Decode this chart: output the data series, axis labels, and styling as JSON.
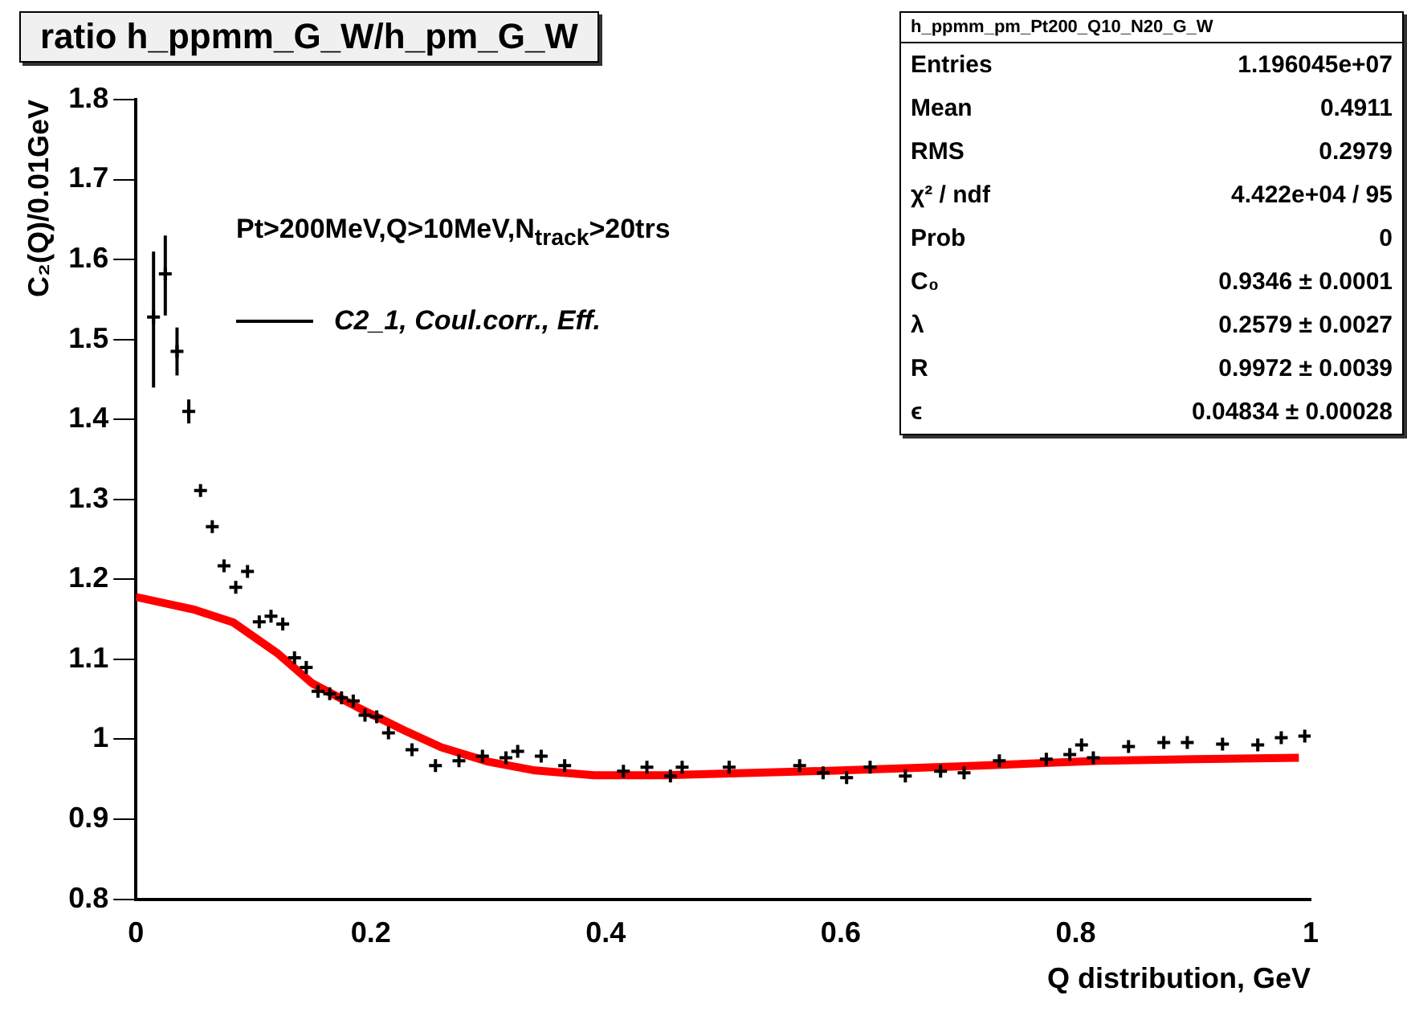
{
  "chart_data": {
    "type": "scatter",
    "title": "ratio h_ppmm_G_W/h_pm_G_W",
    "xlabel": "Q distribution, GeV",
    "ylabel": "C₂(Q)/0.01GeV",
    "xlim": [
      0,
      1
    ],
    "xticks": [
      0,
      0.2,
      0.4,
      0.6,
      0.8,
      1
    ],
    "ylim": [
      0.8,
      1.8
    ],
    "yticks": [
      0.8,
      0.9,
      1,
      1.1,
      1.2,
      1.3,
      1.4,
      1.5,
      1.6,
      1.7,
      1.8
    ],
    "grid": false,
    "legend": false,
    "annotations": [
      "Pt>200MeV,Q>10MeV,N$_{track}$>20trs",
      "C2_1, Coul.corr., Eff.",
      "h_ppmm_pm_Pt200_Q10_N20_G_W",
      "Entries",
      "1.196045e+07",
      "Mean",
      "0.4911",
      "RMS",
      "0.2979",
      "χ² / ndf",
      "4.422e+04 / 95",
      "Prob",
      "0",
      "C₀",
      "0.9346 ± 0.0001",
      "λ",
      "0.2579 ± 0.0027",
      "R",
      "0.9972 ± 0.0039",
      "ϵ",
      "0.04834 ± 0.00028"
    ],
    "series": [
      {
        "marker": "cross",
        "color": "#000000",
        "x": [
          0.015,
          0.025,
          0.035,
          0.045,
          0.055,
          0.065,
          0.075,
          0.085,
          0.095,
          0.105,
          0.115,
          0.125,
          0.135,
          0.145,
          0.155,
          0.165,
          0.175,
          0.185,
          0.195,
          0.205,
          0.215,
          0.235,
          0.255,
          0.275,
          0.295,
          0.315,
          0.325,
          0.345,
          0.365,
          0.415,
          0.435,
          0.455,
          0.465,
          0.505,
          0.565,
          0.585,
          0.605,
          0.625,
          0.655,
          0.685,
          0.705,
          0.735,
          0.775,
          0.795,
          0.805,
          0.815,
          0.845,
          0.875,
          0.895,
          0.925,
          0.955,
          0.975,
          0.995
        ],
        "values": [
          1.528,
          1.582,
          1.485,
          1.41,
          1.311,
          1.266,
          1.217,
          1.19,
          1.21,
          1.147,
          1.154,
          1.144,
          1.102,
          1.09,
          1.06,
          1.057,
          1.052,
          1.048,
          1.03,
          1.028,
          1.008,
          0.987,
          0.967,
          0.973,
          0.979,
          0.977,
          0.985,
          0.979,
          0.967,
          0.96,
          0.965,
          0.954,
          0.965,
          0.965,
          0.967,
          0.958,
          0.952,
          0.965,
          0.954,
          0.96,
          0.958,
          0.973,
          0.975,
          0.981,
          0.993,
          0.977,
          0.991,
          0.996,
          0.996,
          0.994,
          0.993,
          1.002,
          1.004
        ],
        "errors": [
          [
            1.44,
            1.61
          ],
          [
            1.53,
            1.63
          ],
          [
            1.455,
            1.515
          ],
          0.015,
          null,
          null,
          null,
          null,
          null,
          null,
          null,
          null,
          null,
          null,
          null,
          null,
          null,
          null,
          null,
          null,
          null,
          null,
          null,
          null,
          null,
          null,
          null,
          null,
          null,
          null,
          null,
          null,
          null,
          null,
          null,
          null,
          null,
          null,
          null,
          null,
          null,
          null,
          null,
          null,
          null,
          null,
          null,
          null,
          null,
          null,
          null,
          null,
          null
        ]
      },
      {
        "type": "line",
        "marker": "none",
        "color": "#ff0000",
        "x": [
          0,
          0.05,
          0.083,
          0.121,
          0.15,
          0.19,
          0.23,
          0.26,
          0.3,
          0.34,
          0.39,
          0.45,
          0.5,
          0.6,
          0.7,
          0.82,
          0.9,
          0.99
        ],
        "values": [
          1.178,
          1.162,
          1.146,
          1.107,
          1.07,
          1.039,
          1.01,
          0.99,
          0.972,
          0.961,
          0.955,
          0.955,
          0.957,
          0.961,
          0.966,
          0.973,
          0.975,
          0.977
        ]
      }
    ]
  }
}
